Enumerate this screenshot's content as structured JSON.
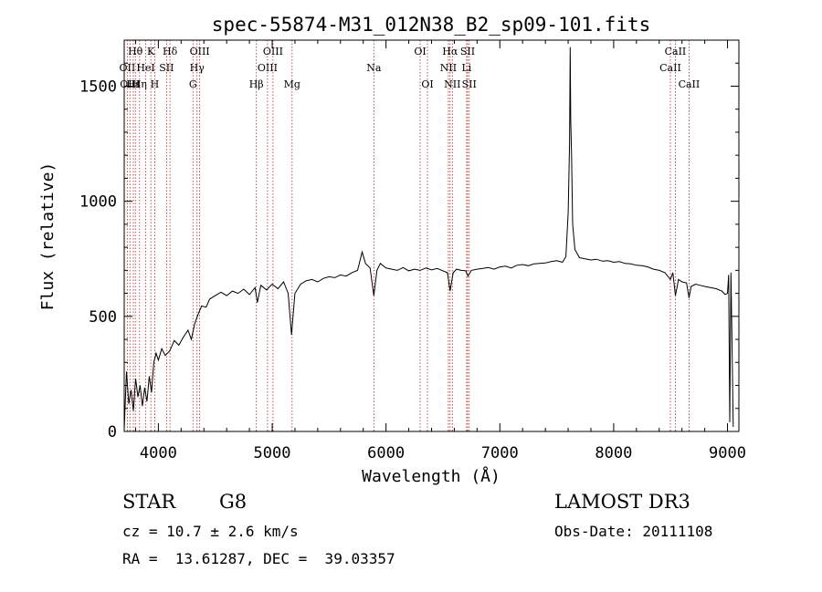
{
  "chart_data": {
    "type": "line",
    "title": "spec-55874-M31_012N38_B2_sp09-101.fits",
    "xlabel": "Wavelength (Å)",
    "ylabel": "Flux (relative)",
    "xlim": [
      3700,
      9100
    ],
    "ylim": [
      0,
      1700
    ],
    "x_ticks": [
      4000,
      5000,
      6000,
      7000,
      8000,
      9000
    ],
    "y_ticks": [
      0,
      500,
      1000,
      1500
    ],
    "series": [
      {
        "name": "flux",
        "points": [
          [
            3700,
            10
          ],
          [
            3720,
            260
          ],
          [
            3740,
            120
          ],
          [
            3760,
            180
          ],
          [
            3780,
            90
          ],
          [
            3800,
            230
          ],
          [
            3820,
            150
          ],
          [
            3840,
            200
          ],
          [
            3860,
            110
          ],
          [
            3880,
            190
          ],
          [
            3900,
            130
          ],
          [
            3920,
            240
          ],
          [
            3940,
            170
          ],
          [
            3960,
            300
          ],
          [
            3980,
            340
          ],
          [
            4000,
            310
          ],
          [
            4030,
            360
          ],
          [
            4060,
            330
          ],
          [
            4100,
            350
          ],
          [
            4140,
            395
          ],
          [
            4180,
            375
          ],
          [
            4220,
            410
          ],
          [
            4260,
            440
          ],
          [
            4290,
            400
          ],
          [
            4320,
            470
          ],
          [
            4350,
            510
          ],
          [
            4380,
            545
          ],
          [
            4420,
            540
          ],
          [
            4450,
            575
          ],
          [
            4500,
            590
          ],
          [
            4550,
            605
          ],
          [
            4600,
            590
          ],
          [
            4650,
            610
          ],
          [
            4700,
            600
          ],
          [
            4750,
            618
          ],
          [
            4800,
            595
          ],
          [
            4850,
            625
          ],
          [
            4870,
            560
          ],
          [
            4900,
            635
          ],
          [
            4950,
            615
          ],
          [
            5000,
            640
          ],
          [
            5050,
            620
          ],
          [
            5100,
            650
          ],
          [
            5140,
            600
          ],
          [
            5170,
            420
          ],
          [
            5200,
            600
          ],
          [
            5250,
            640
          ],
          [
            5300,
            655
          ],
          [
            5350,
            660
          ],
          [
            5400,
            650
          ],
          [
            5450,
            665
          ],
          [
            5500,
            672
          ],
          [
            5550,
            668
          ],
          [
            5600,
            680
          ],
          [
            5650,
            675
          ],
          [
            5700,
            690
          ],
          [
            5750,
            700
          ],
          [
            5790,
            780
          ],
          [
            5820,
            730
          ],
          [
            5860,
            710
          ],
          [
            5893,
            590
          ],
          [
            5920,
            700
          ],
          [
            5950,
            730
          ],
          [
            6000,
            710
          ],
          [
            6050,
            705
          ],
          [
            6100,
            700
          ],
          [
            6150,
            712
          ],
          [
            6200,
            698
          ],
          [
            6250,
            705
          ],
          [
            6300,
            700
          ],
          [
            6350,
            710
          ],
          [
            6400,
            702
          ],
          [
            6450,
            708
          ],
          [
            6500,
            698
          ],
          [
            6540,
            690
          ],
          [
            6563,
            610
          ],
          [
            6590,
            690
          ],
          [
            6620,
            705
          ],
          [
            6660,
            700
          ],
          [
            6700,
            698
          ],
          [
            6720,
            675
          ],
          [
            6750,
            700
          ],
          [
            6800,
            705
          ],
          [
            6850,
            708
          ],
          [
            6900,
            712
          ],
          [
            6950,
            705
          ],
          [
            7000,
            715
          ],
          [
            7050,
            718
          ],
          [
            7100,
            710
          ],
          [
            7150,
            722
          ],
          [
            7200,
            725
          ],
          [
            7250,
            720
          ],
          [
            7300,
            728
          ],
          [
            7350,
            730
          ],
          [
            7400,
            732
          ],
          [
            7450,
            738
          ],
          [
            7500,
            742
          ],
          [
            7550,
            735
          ],
          [
            7580,
            760
          ],
          [
            7600,
            950
          ],
          [
            7612,
            1250
          ],
          [
            7618,
            1670
          ],
          [
            7623,
            1350
          ],
          [
            7630,
            1200
          ],
          [
            7640,
            900
          ],
          [
            7660,
            790
          ],
          [
            7700,
            755
          ],
          [
            7750,
            750
          ],
          [
            7800,
            745
          ],
          [
            7850,
            748
          ],
          [
            7900,
            740
          ],
          [
            7950,
            742
          ],
          [
            8000,
            735
          ],
          [
            8050,
            738
          ],
          [
            8100,
            730
          ],
          [
            8150,
            728
          ],
          [
            8200,
            722
          ],
          [
            8250,
            720
          ],
          [
            8300,
            715
          ],
          [
            8350,
            705
          ],
          [
            8400,
            700
          ],
          [
            8450,
            690
          ],
          [
            8498,
            660
          ],
          [
            8520,
            690
          ],
          [
            8542,
            590
          ],
          [
            8570,
            660
          ],
          [
            8600,
            650
          ],
          [
            8640,
            645
          ],
          [
            8662,
            580
          ],
          [
            8680,
            630
          ],
          [
            8720,
            640
          ],
          [
            8760,
            635
          ],
          [
            8800,
            630
          ],
          [
            8850,
            625
          ],
          [
            8900,
            620
          ],
          [
            8950,
            610
          ],
          [
            8980,
            595
          ],
          [
            9000,
            600
          ],
          [
            9010,
            680
          ],
          [
            9020,
            40
          ],
          [
            9030,
            690
          ],
          [
            9040,
            380
          ],
          [
            9050,
            20
          ]
        ]
      }
    ],
    "lines": [
      {
        "label": "Hθ",
        "wl": 3798,
        "row": 0
      },
      {
        "label": "OII",
        "wl": 3727,
        "row": 1
      },
      {
        "label": "OIII",
        "wl": 3750,
        "row": 2
      },
      {
        "label": "Hε",
        "wl": 3780,
        "row": 2
      },
      {
        "label": "Hη",
        "wl": 3835,
        "row": 2
      },
      {
        "label": "K",
        "wl": 3934,
        "row": 0
      },
      {
        "label": "HeI",
        "wl": 3889,
        "row": 1
      },
      {
        "label": "H",
        "wl": 3968,
        "row": 2
      },
      {
        "label": "SII",
        "wl": 4072,
        "row": 1
      },
      {
        "label": "Hδ",
        "wl": 4102,
        "row": 0
      },
      {
        "label": "OIII",
        "wl": 4363,
        "row": 0
      },
      {
        "label": "Hγ",
        "wl": 4340,
        "row": 1
      },
      {
        "label": "G",
        "wl": 4304,
        "row": 2
      },
      {
        "label": "Hβ",
        "wl": 4861,
        "row": 2
      },
      {
        "label": "OIII",
        "wl": 5007,
        "row": 0
      },
      {
        "label": "OIII",
        "wl": 4959,
        "row": 1
      },
      {
        "label": "Mg",
        "wl": 5175,
        "row": 2
      },
      {
        "label": "Na",
        "wl": 5893,
        "row": 1
      },
      {
        "label": "OI",
        "wl": 6300,
        "row": 0
      },
      {
        "label": "OI",
        "wl": 6364,
        "row": 2
      },
      {
        "label": "Hα",
        "wl": 6563,
        "row": 0
      },
      {
        "label": "NII",
        "wl": 6548,
        "row": 1
      },
      {
        "label": "NII",
        "wl": 6583,
        "row": 2
      },
      {
        "label": "SII",
        "wl": 6717,
        "row": 0
      },
      {
        "label": "Li",
        "wl": 6708,
        "row": 1
      },
      {
        "label": "SII",
        "wl": 6731,
        "row": 2
      },
      {
        "label": "CaII",
        "wl": 8542,
        "row": 0
      },
      {
        "label": "CaII",
        "wl": 8498,
        "row": 1
      },
      {
        "label": "CaII",
        "wl": 8662,
        "row": 2
      }
    ]
  },
  "info": {
    "class": "STAR",
    "subclass": "G8",
    "survey": "LAMOST DR3",
    "cz": "cz = 10.7 ± 2.6 km/s",
    "obs_date": "Obs-Date: 20111108",
    "coords": "RA =  13.61287, DEC =  39.03357"
  },
  "colors": {
    "line_marker": "#b22222",
    "spectrum": "#000000"
  }
}
